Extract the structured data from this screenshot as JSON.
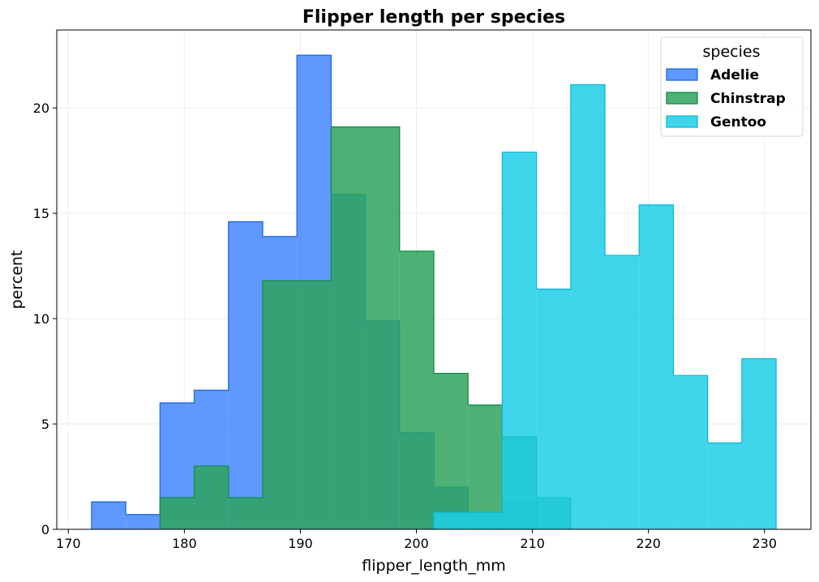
{
  "chart_data": {
    "type": "histogram",
    "title": "Flipper length per species",
    "xlabel": "flipper_length_mm",
    "ylabel": "percent",
    "xlim": [
      169,
      234
    ],
    "ylim": [
      0,
      23.7
    ],
    "xticks": [
      170,
      180,
      190,
      200,
      210,
      220,
      230
    ],
    "yticks": [
      0,
      5,
      10,
      15,
      20
    ],
    "grid": true,
    "legend": {
      "title": "species",
      "placement": "top-right"
    },
    "bin_width": 2.95,
    "series": [
      {
        "name": "Adelie",
        "color": "#4387FF",
        "edge_color": "#1F6AE0",
        "bin_starts": [
          172.0,
          174.95,
          177.9,
          180.85,
          183.8,
          186.75,
          189.7,
          192.65,
          195.6,
          198.55,
          201.5,
          204.45,
          207.4
        ],
        "values": [
          1.3,
          0.7,
          6.0,
          6.6,
          14.6,
          13.9,
          22.5,
          15.9,
          9.9,
          4.6,
          2.0,
          0.7,
          1.3
        ]
      },
      {
        "name": "Chinstrap",
        "color": "#2EA35E",
        "edge_color": "#168A48",
        "bin_starts": [
          177.9,
          180.85,
          183.8,
          186.75,
          189.7,
          192.65,
          195.6,
          198.55,
          201.5,
          204.45,
          207.4,
          210.35
        ],
        "values": [
          1.5,
          3.0,
          1.5,
          11.8,
          11.8,
          19.1,
          19.1,
          13.2,
          7.4,
          5.9,
          4.4,
          1.5
        ]
      },
      {
        "name": "Gentoo",
        "color": "#1DCFE8",
        "edge_color": "#12B8D2",
        "bin_starts": [
          201.5,
          204.45,
          207.4,
          210.35,
          213.3,
          216.25,
          219.2,
          222.15,
          225.1,
          228.05
        ],
        "values": [
          0.8,
          0.8,
          17.9,
          11.4,
          21.1,
          13.0,
          15.4,
          7.3,
          4.1,
          8.1
        ]
      }
    ]
  }
}
